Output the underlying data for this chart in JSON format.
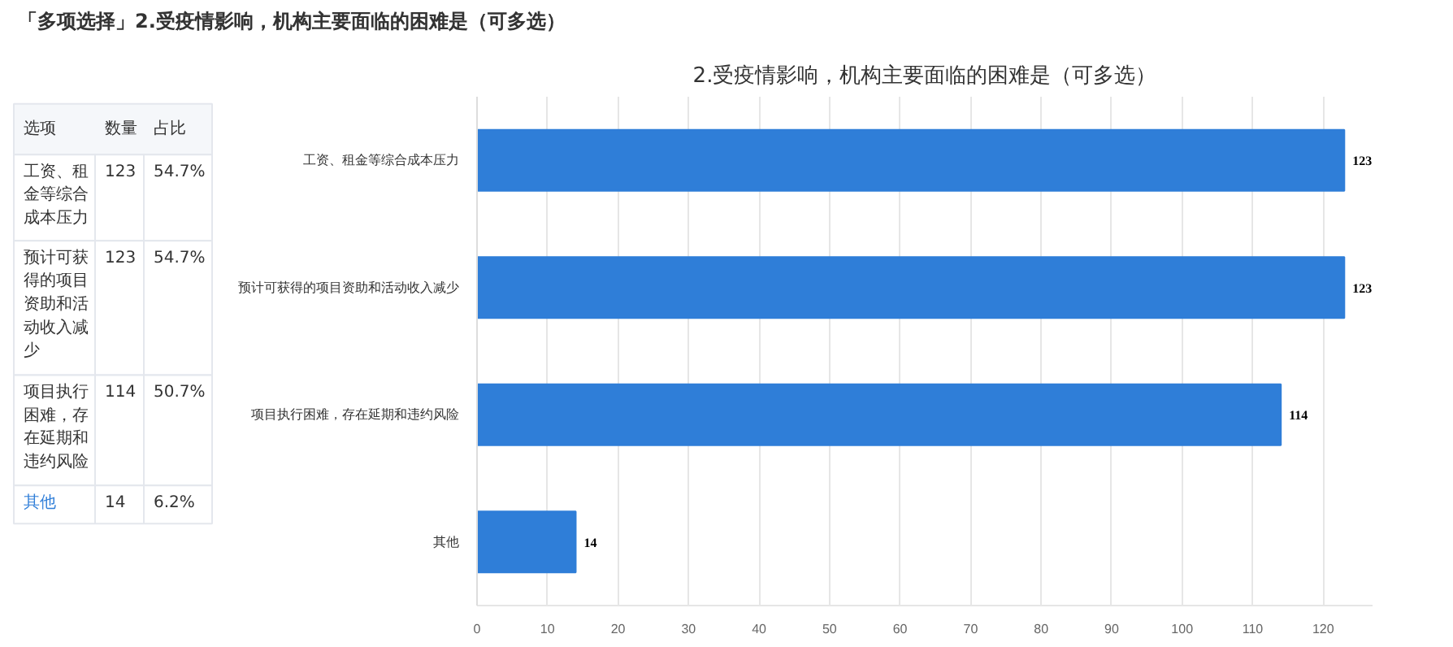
{
  "chart_data": [
    {
      "type": "other",
      "title": "「多项选择」2.受疫情影响，机构主要面临的困难是（可多选）",
      "annotations": [
        "选项"
      ],
      "data_labels": true,
      "categories": [
        "工资、租金等综合成本压力",
        "预计可获得的项目资助和活动收入减少",
        "项目执行困难，存在延期和违约风险",
        "其他"
      ],
      "series": [
        {
          "name": "数量",
          "values": [
            123,
            123,
            114,
            14
          ]
        },
        {
          "name": "占比",
          "values": [
            54.7,
            54.7,
            50.7,
            6.2
          ],
          "value_labels": [
            "54.7%",
            "54.7%",
            "50.7%",
            "6.2%"
          ]
        }
      ]
    },
    {
      "type": "bar",
      "orientation": "horizontal",
      "title": "2.受疫情影响，机构主要面临的困难是（可多选）",
      "categories": [
        "工资、租金等综合成本压力",
        "预计可获得的项目资助和活动收入减少",
        "项目执行困难，存在延期和违约风险",
        "其他"
      ],
      "values": [
        123,
        123,
        114,
        14
      ],
      "color": "#2f7ed8",
      "data_labels": true,
      "xlim": [
        0,
        127
      ],
      "xticks": [
        0,
        10,
        20,
        30,
        40,
        50,
        60,
        70,
        80,
        90,
        100,
        110,
        120
      ],
      "grid": "x"
    }
  ]
}
